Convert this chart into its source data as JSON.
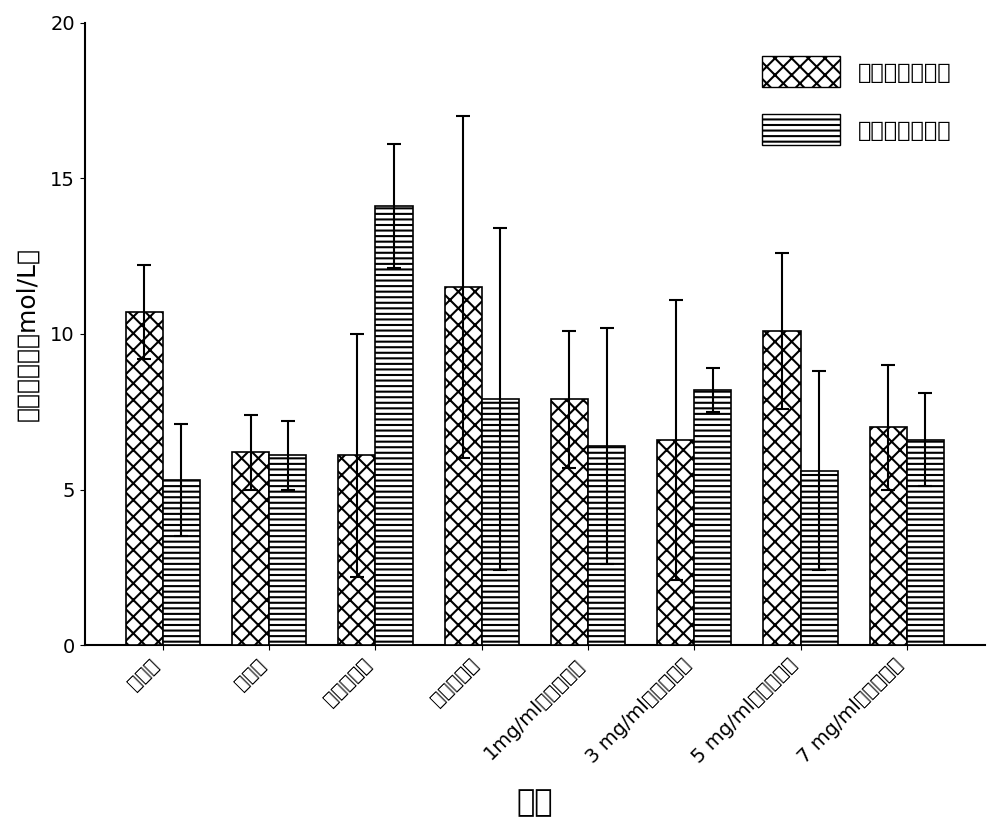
{
  "categories": [
    "正常组",
    "模型组",
    "溶剂对照组",
    "阳性药物组",
    "1mg/ml药物浓度组",
    "3 mg/ml药物浓度组",
    "5 mg/ml药物浓度组",
    "7 mg/ml药物浓度组"
  ],
  "liver_values": [
    10.7,
    6.2,
    6.1,
    11.5,
    7.9,
    6.6,
    10.1,
    7.0
  ],
  "liver_errors": [
    1.5,
    1.2,
    3.9,
    5.5,
    2.2,
    4.5,
    2.5,
    2.0
  ],
  "serum_values": [
    5.3,
    6.1,
    14.1,
    7.9,
    6.4,
    8.2,
    5.6,
    6.6
  ],
  "serum_errors": [
    1.8,
    1.1,
    2.0,
    5.5,
    3.8,
    0.7,
    3.2,
    1.5
  ],
  "ylabel": "葡萄糖含量（mol/L）",
  "xlabel": "组别",
  "ylim": [
    0,
    20
  ],
  "yticks": [
    0,
    5,
    10,
    15,
    20
  ],
  "legend_liver": "肝脏葡萄糖含量",
  "legend_serum": "血清葡萄糖含量",
  "bar_width": 0.35,
  "liver_hatch": "xx",
  "serum_hatch": "---",
  "label_fontsize": 18,
  "tick_fontsize": 14,
  "legend_fontsize": 16,
  "xlabel_fontsize": 22
}
